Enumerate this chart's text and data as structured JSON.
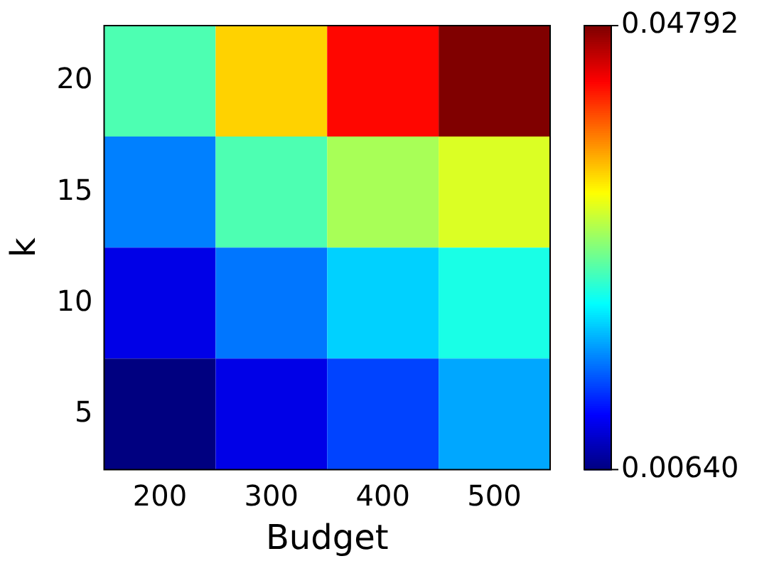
{
  "chart_data": {
    "type": "heatmap",
    "xlabel": "Budget",
    "ylabel": "k",
    "categories": [
      "200",
      "300",
      "400",
      "500"
    ],
    "y_categories": [
      "20",
      "15",
      "10",
      "5"
    ],
    "cells": [
      [
        0.0251,
        0.0342,
        0.0425,
        0.04792
      ],
      [
        0.0168,
        0.0251,
        0.0288,
        0.0309
      ],
      [
        0.0106,
        0.0164,
        0.0201,
        0.023
      ],
      [
        0.0064,
        0.0106,
        0.0143,
        0.0184
      ]
    ],
    "clim": [
      0.0064,
      0.04792
    ],
    "cticks": [
      {
        "value": 0.0064,
        "label": "0.00640"
      },
      {
        "value": 0.04792,
        "label": "0.04792"
      }
    ]
  }
}
